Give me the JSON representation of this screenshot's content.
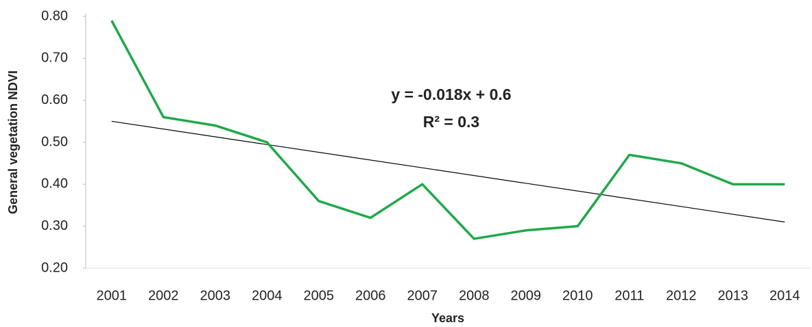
{
  "chart_data": {
    "type": "line",
    "x_label": "Years",
    "y_label": "General vegetation NDVI",
    "categories": [
      "2001",
      "2002",
      "2003",
      "2004",
      "2005",
      "2006",
      "2007",
      "2008",
      "2009",
      "2010",
      "2011",
      "2012",
      "2013",
      "2014"
    ],
    "series": [
      {
        "color": "#1fa84a",
        "values": [
          0.79,
          0.56,
          0.54,
          0.5,
          0.36,
          0.32,
          0.4,
          0.27,
          0.29,
          0.3,
          0.47,
          0.45,
          0.4,
          0.4
        ]
      }
    ],
    "trendline": {
      "start": 0.55,
      "end": 0.31,
      "color": "#000000"
    },
    "annotations": [
      "y = -0.018x + 0.6",
      "R² = 0.3"
    ],
    "ylim": [
      0.2,
      0.8
    ],
    "yticks": [
      {
        "value": 0.2,
        "label": "0.20"
      },
      {
        "value": 0.3,
        "label": "0.30"
      },
      {
        "value": 0.4,
        "label": "0.40"
      },
      {
        "value": 0.5,
        "label": "0.50"
      },
      {
        "value": 0.6,
        "label": "0.60"
      },
      {
        "value": 0.7,
        "label": "0.70"
      },
      {
        "value": 0.8,
        "label": "0.80"
      }
    ],
    "grid": false
  }
}
